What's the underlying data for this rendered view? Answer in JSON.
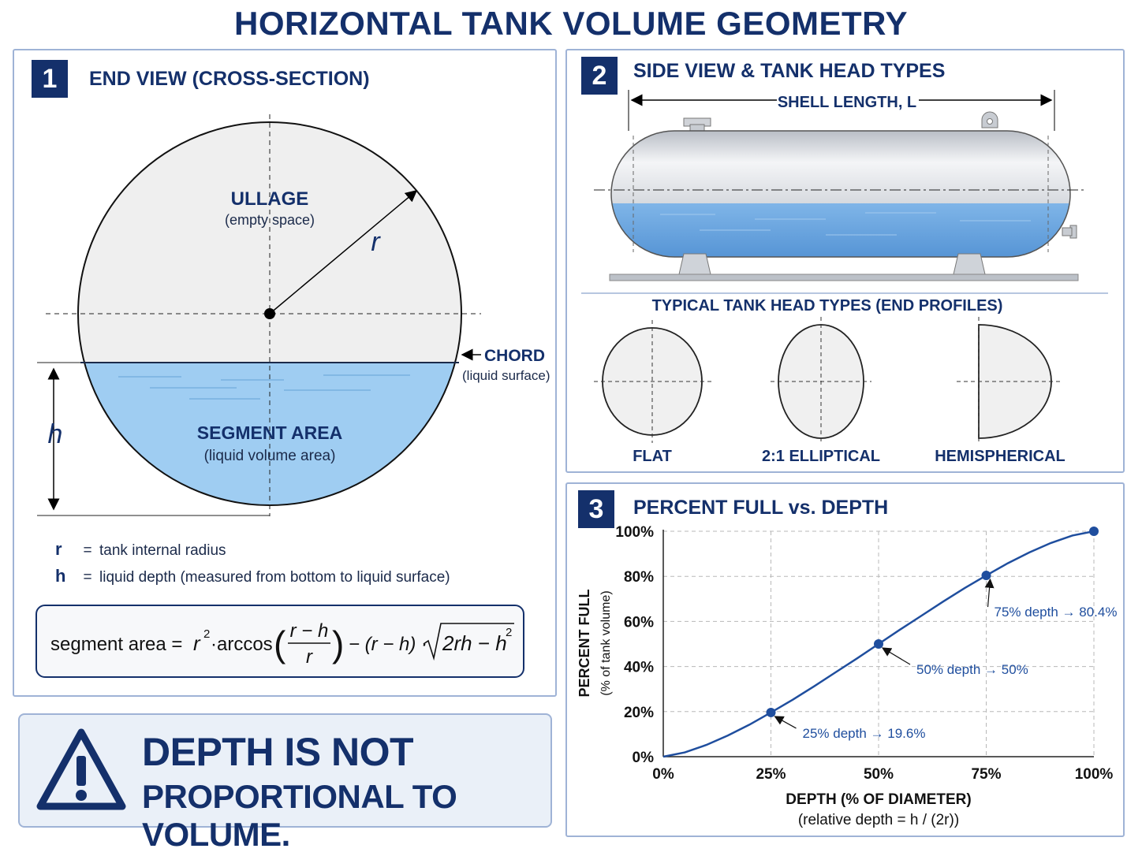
{
  "title": "HORIZONTAL TANK VOLUME GEOMETRY",
  "panel1": {
    "number": "1",
    "title": "END VIEW (CROSS-SECTION)",
    "ullage_label": "ULLAGE",
    "ullage_sub": "(empty space)",
    "radius_symbol": "r",
    "chord_label": "CHORD",
    "chord_sub": "(liquid surface)",
    "depth_symbol": "h",
    "segment_label": "SEGMENT AREA",
    "segment_sub": "(liquid volume area)",
    "legend": [
      {
        "symbol": "r",
        "eq": "=",
        "text": "tank internal radius"
      },
      {
        "symbol": "h",
        "eq": "=",
        "text": "liquid depth (measured from bottom to liquid surface)"
      }
    ],
    "formula": {
      "lhs": "segment area =",
      "r2": "r",
      "sup2": "2",
      "dot_arccos": "·arccos",
      "num": "r − h",
      "den": "r",
      "minus_part": "− (r − h) ·",
      "sqrt": "2rh − h",
      "sqrt_sup": "2"
    }
  },
  "warning": {
    "line1": "DEPTH IS NOT",
    "line2": "PROPORTIONAL TO VOLUME."
  },
  "panel2": {
    "number": "2",
    "title": "SIDE VIEW & TANK HEAD TYPES",
    "shell_length": "SHELL LENGTH, L",
    "head_types_title": "TYPICAL TANK HEAD TYPES (END PROFILES)",
    "heads": [
      "FLAT",
      "2:1 ELLIPTICAL",
      "HEMISPHERICAL"
    ]
  },
  "panel3": {
    "number": "3",
    "title": "PERCENT FULL vs. DEPTH"
  },
  "chart_data": {
    "type": "line",
    "ylabel": "PERCENT FULL",
    "ylabel_sub": "(% of tank volume)",
    "xlabel": "DEPTH (% OF DIAMETER)",
    "xlabel_sub": "(relative depth = h / (2r))",
    "x_ticks": [
      "0%",
      "25%",
      "50%",
      "75%",
      "100%"
    ],
    "y_ticks": [
      "0%",
      "20%",
      "40%",
      "60%",
      "80%",
      "100%"
    ],
    "xlim": [
      0,
      100
    ],
    "ylim": [
      0,
      100
    ],
    "grid": true,
    "curve_x": [
      0,
      5,
      10,
      15,
      20,
      25,
      30,
      35,
      40,
      45,
      50,
      55,
      60,
      65,
      70,
      75,
      80,
      85,
      90,
      95,
      100
    ],
    "curve_y": [
      0,
      1.9,
      5.2,
      9.4,
      14.2,
      19.6,
      25.2,
      31.2,
      37.4,
      43.6,
      50,
      56.4,
      62.6,
      68.8,
      74.8,
      80.4,
      85.8,
      90.6,
      94.8,
      98.1,
      100
    ],
    "markers": [
      {
        "x": 25,
        "y": 19.6,
        "label": "25% depth → 19.6%"
      },
      {
        "x": 50,
        "y": 50,
        "label": "50% depth → 50%"
      },
      {
        "x": 75,
        "y": 80.4,
        "label": "75% depth → 80.4%"
      },
      {
        "x": 100,
        "y": 100,
        "label": ""
      }
    ],
    "line_color": "#1f4e9e"
  }
}
